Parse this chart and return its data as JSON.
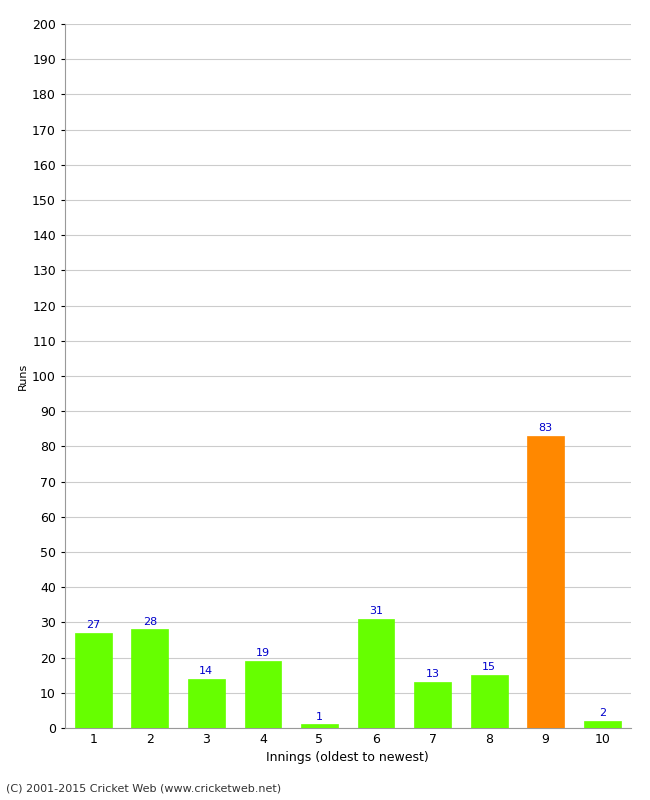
{
  "innings": [
    1,
    2,
    3,
    4,
    5,
    6,
    7,
    8,
    9,
    10
  ],
  "runs": [
    27,
    28,
    14,
    19,
    1,
    31,
    13,
    15,
    83,
    2
  ],
  "bar_colors": [
    "#66ff00",
    "#66ff00",
    "#66ff00",
    "#66ff00",
    "#66ff00",
    "#66ff00",
    "#66ff00",
    "#66ff00",
    "#ff8800",
    "#66ff00"
  ],
  "label_color": "#0000cc",
  "ylabel": "Runs",
  "xlabel": "Innings (oldest to newest)",
  "ylim": [
    0,
    200
  ],
  "yticks": [
    0,
    10,
    20,
    30,
    40,
    50,
    60,
    70,
    80,
    90,
    100,
    110,
    120,
    130,
    140,
    150,
    160,
    170,
    180,
    190,
    200
  ],
  "background_color": "#ffffff",
  "grid_color": "#cccccc",
  "footer": "(C) 2001-2015 Cricket Web (www.cricketweb.net)"
}
